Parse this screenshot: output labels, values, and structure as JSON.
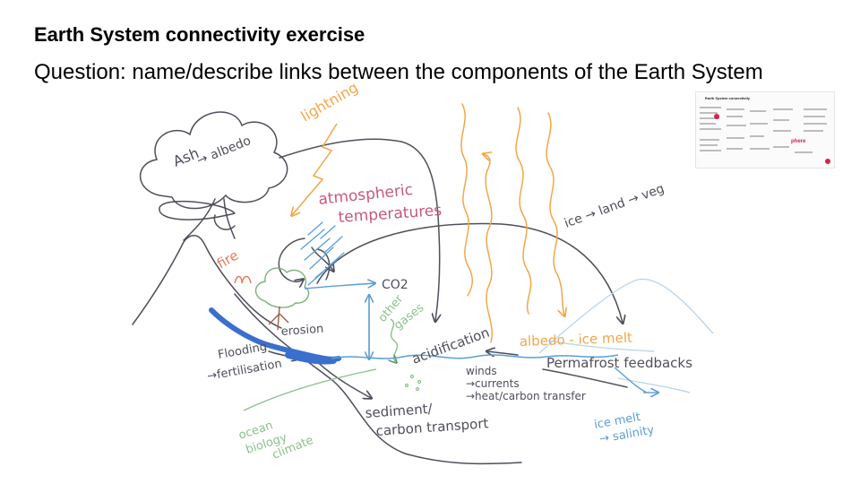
{
  "slide": {
    "title": "Earth System connectivity exercise",
    "question": "Question: name/describe links between the components of the Earth System"
  },
  "diagram": {
    "labels": {
      "ash": "Ash",
      "albedo": "→ albedo",
      "lightning": "lightning",
      "atmospheric": "atmospheric",
      "temperatures": "temperatures",
      "ice_land": "ice → land → veg",
      "fire": "fire",
      "co2": "CO2",
      "other": "other",
      "gases": "gases",
      "erosion": "erosion",
      "acidification": "acidification",
      "albedo_ice_melt": "albedo - ice melt",
      "flooding": "Flooding",
      "fertilisation": "→fertilisation",
      "winds": "winds",
      "currents": "→currents",
      "heat_carbon": "→heat/carbon transfer",
      "permafrost": "Permafrost feedbacks",
      "sediment": "sediment/",
      "carbon_transport": "carbon transport",
      "ocean": "ocean",
      "biology": "biology",
      "climate": "climate",
      "ice_melt": "ice melt",
      "salinity": "→ salinity"
    },
    "thumbnail": {
      "heading": "Earth System connectivity",
      "logo": "phere"
    },
    "colors": {
      "ink": "#4f4f5c",
      "orange": "#f2a64a",
      "pink": "#c55a7c",
      "blue": "#5a9fd4",
      "river": "#3a6fcf",
      "green": "#8cc08c",
      "darkgreen": "#5f9a6a",
      "fire": "#e87a5a",
      "brown": "#9a5f4a",
      "lightblue": "#bcd7ea"
    }
  }
}
